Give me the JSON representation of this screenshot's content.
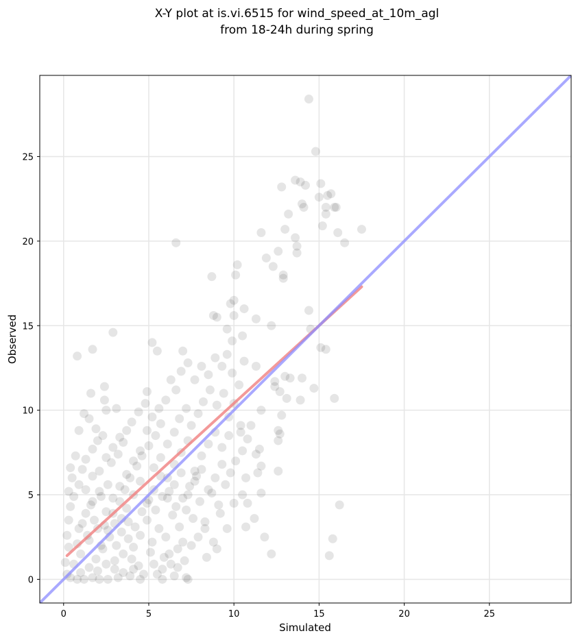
{
  "chart_data": {
    "type": "scatter",
    "title": "X-Y plot at is.vi.6515 for wind_speed_at_10m_agl",
    "subtitle": "from 18-24h during spring",
    "xlabel": "Simulated",
    "ylabel": "Observed",
    "xlim": [
      -1.4,
      29.8
    ],
    "ylim": [
      -1.4,
      29.8
    ],
    "xticks": [
      0,
      5,
      10,
      15,
      20,
      25
    ],
    "yticks": [
      0,
      5,
      10,
      15,
      20,
      25
    ],
    "grid": true,
    "point_color": "#000000",
    "point_alpha": 0.1,
    "points": [
      [
        14.4,
        28.4
      ],
      [
        14.8,
        25.3
      ],
      [
        13.6,
        23.6
      ],
      [
        13.9,
        23.5
      ],
      [
        14.2,
        23.3
      ],
      [
        15.1,
        23.4
      ],
      [
        12.8,
        23.2
      ],
      [
        14.0,
        22.2
      ],
      [
        14.1,
        22.0
      ],
      [
        15.0,
        22.6
      ],
      [
        15.5,
        22.7
      ],
      [
        15.7,
        22.8
      ],
      [
        15.4,
        22.0
      ],
      [
        15.9,
        22.0
      ],
      [
        16.0,
        22.0
      ],
      [
        13.2,
        21.6
      ],
      [
        15.4,
        21.6
      ],
      [
        15.2,
        20.9
      ],
      [
        13.0,
        20.7
      ],
      [
        16.1,
        20.5
      ],
      [
        17.5,
        20.7
      ],
      [
        11.6,
        20.5
      ],
      [
        13.6,
        20.2
      ],
      [
        13.7,
        19.7
      ],
      [
        16.5,
        19.9
      ],
      [
        6.6,
        19.9
      ],
      [
        12.6,
        19.4
      ],
      [
        13.7,
        19.3
      ],
      [
        11.9,
        19.0
      ],
      [
        10.2,
        18.6
      ],
      [
        12.3,
        18.5
      ],
      [
        10.1,
        18.0
      ],
      [
        12.9,
        18.0
      ],
      [
        12.9,
        17.8
      ],
      [
        8.7,
        17.9
      ],
      [
        10.0,
        16.5
      ],
      [
        9.8,
        16.3
      ],
      [
        10.6,
        16.0
      ],
      [
        8.8,
        15.6
      ],
      [
        9.0,
        15.5
      ],
      [
        10.0,
        15.6
      ],
      [
        11.3,
        15.4
      ],
      [
        14.4,
        15.9
      ],
      [
        14.5,
        14.8
      ],
      [
        10.5,
        14.4
      ],
      [
        9.6,
        14.8
      ],
      [
        9.9,
        14.1
      ],
      [
        2.9,
        14.6
      ],
      [
        5.2,
        14.0
      ],
      [
        5.5,
        13.5
      ],
      [
        7.0,
        13.5
      ],
      [
        1.7,
        13.6
      ],
      [
        0.8,
        13.2
      ],
      [
        15.1,
        13.7
      ],
      [
        15.4,
        13.6
      ],
      [
        12.2,
        15.0
      ],
      [
        11.3,
        12.6
      ],
      [
        12.4,
        11.7
      ],
      [
        13.0,
        12.0
      ],
      [
        13.3,
        11.9
      ],
      [
        14.0,
        11.9
      ],
      [
        12.4,
        11.4
      ],
      [
        12.7,
        11.1
      ],
      [
        14.7,
        11.3
      ],
      [
        13.1,
        10.7
      ],
      [
        13.9,
        10.6
      ],
      [
        15.9,
        10.7
      ],
      [
        11.6,
        10.0
      ],
      [
        12.8,
        9.7
      ],
      [
        12.6,
        8.8
      ],
      [
        12.7,
        8.6
      ],
      [
        12.6,
        8.2
      ],
      [
        11.0,
        9.1
      ],
      [
        10.4,
        8.7
      ],
      [
        11.5,
        7.7
      ],
      [
        11.3,
        7.4
      ],
      [
        11.6,
        6.7
      ],
      [
        11.4,
        6.3
      ],
      [
        12.6,
        6.4
      ],
      [
        11.6,
        5.1
      ],
      [
        10.7,
        6.0
      ],
      [
        10.5,
        5.0
      ],
      [
        10.8,
        4.5
      ],
      [
        10.0,
        4.5
      ],
      [
        11.2,
        3.6
      ],
      [
        10.7,
        3.1
      ],
      [
        9.6,
        3.0
      ],
      [
        11.8,
        2.5
      ],
      [
        9.2,
        3.9
      ],
      [
        8.8,
        2.2
      ],
      [
        9.0,
        1.8
      ],
      [
        8.4,
        1.3
      ],
      [
        12.2,
        1.5
      ],
      [
        15.6,
        1.4
      ],
      [
        15.8,
        2.4
      ],
      [
        16.2,
        4.4
      ],
      [
        4.9,
        11.1
      ],
      [
        1.6,
        11.0
      ],
      [
        2.4,
        11.4
      ],
      [
        2.4,
        10.6
      ],
      [
        1.2,
        9.8
      ],
      [
        1.5,
        9.5
      ],
      [
        2.5,
        10.0
      ],
      [
        3.1,
        10.1
      ],
      [
        0.9,
        8.8
      ],
      [
        1.9,
        8.9
      ],
      [
        7.0,
        2.2
      ],
      [
        7.3,
        0.0
      ],
      [
        7.2,
        0.1
      ],
      [
        6.5,
        0.2
      ],
      [
        5.8,
        0.0
      ],
      [
        5.5,
        0.3
      ],
      [
        4.5,
        0.0
      ],
      [
        3.9,
        0.2
      ],
      [
        3.2,
        0.1
      ],
      [
        2.6,
        0.0
      ],
      [
        2.1,
        0.0
      ],
      [
        1.7,
        0.1
      ],
      [
        1.2,
        0.0
      ],
      [
        0.8,
        0.0
      ],
      [
        0.4,
        0.1
      ],
      [
        0.2,
        0.3
      ],
      [
        0.1,
        1.0
      ],
      [
        0.3,
        1.9
      ],
      [
        0.2,
        2.6
      ],
      [
        0.3,
        3.5
      ],
      [
        0.4,
        4.3
      ],
      [
        0.3,
        5.2
      ],
      [
        0.5,
        6.0
      ],
      [
        0.4,
        6.6
      ],
      [
        0.7,
        7.3
      ],
      [
        0.6,
        4.9
      ],
      [
        0.9,
        5.6
      ],
      [
        1.1,
        6.5
      ],
      [
        1.3,
        7.1
      ],
      [
        1.7,
        7.7
      ],
      [
        2.0,
        8.2
      ],
      [
        2.3,
        8.5
      ],
      [
        0.8,
        2.1
      ],
      [
        1.1,
        3.3
      ],
      [
        1.5,
        2.3
      ],
      [
        1.6,
        4.4
      ],
      [
        2.0,
        3.0
      ],
      [
        2.2,
        4.9
      ],
      [
        2.6,
        5.6
      ],
      [
        2.8,
        6.9
      ],
      [
        3.2,
        7.4
      ],
      [
        3.5,
        8.1
      ],
      [
        3.7,
        8.8
      ],
      [
        4.0,
        9.3
      ],
      [
        4.4,
        9.9
      ],
      [
        4.8,
        10.4
      ],
      [
        5.2,
        9.6
      ],
      [
        5.6,
        10.1
      ],
      [
        6.0,
        10.6
      ],
      [
        6.3,
        11.8
      ],
      [
        6.6,
        11.2
      ],
      [
        6.9,
        12.3
      ],
      [
        7.3,
        12.8
      ],
      [
        7.7,
        11.8
      ],
      [
        8.1,
        12.6
      ],
      [
        8.5,
        12.1
      ],
      [
        8.9,
        13.1
      ],
      [
        9.3,
        12.6
      ],
      [
        9.6,
        13.3
      ],
      [
        9.9,
        12.2
      ],
      [
        10.3,
        11.5
      ],
      [
        10.6,
        12.9
      ],
      [
        1.9,
        1.2
      ],
      [
        2.3,
        1.8
      ],
      [
        2.7,
        2.5
      ],
      [
        3.0,
        1.1
      ],
      [
        3.4,
        2.8
      ],
      [
        3.8,
        3.4
      ],
      [
        4.1,
        1.9
      ],
      [
        4.5,
        2.6
      ],
      [
        4.9,
        3.5
      ],
      [
        5.2,
        2.2
      ],
      [
        5.6,
        3.0
      ],
      [
        6.0,
        2.5
      ],
      [
        6.4,
        3.8
      ],
      [
        6.8,
        3.1
      ],
      [
        7.2,
        4.1
      ],
      [
        7.6,
        3.6
      ],
      [
        8.0,
        4.6
      ],
      [
        8.3,
        3.4
      ],
      [
        8.7,
        5.1
      ],
      [
        9.1,
        4.4
      ],
      [
        9.5,
        5.6
      ],
      [
        9.8,
        6.3
      ],
      [
        10.1,
        7.0
      ],
      [
        10.5,
        7.6
      ],
      [
        2.9,
        3.9
      ],
      [
        3.3,
        4.6
      ],
      [
        3.6,
        5.3
      ],
      [
        3.9,
        6.0
      ],
      [
        4.3,
        6.7
      ],
      [
        4.6,
        7.3
      ],
      [
        5.0,
        7.9
      ],
      [
        5.4,
        8.5
      ],
      [
        5.7,
        9.2
      ],
      [
        6.1,
        8.0
      ],
      [
        6.5,
        8.7
      ],
      [
        6.8,
        9.5
      ],
      [
        7.2,
        10.1
      ],
      [
        7.5,
        9.1
      ],
      [
        7.9,
        9.8
      ],
      [
        8.2,
        10.5
      ],
      [
        8.6,
        11.2
      ],
      [
        9.0,
        10.3
      ],
      [
        9.4,
        11.0
      ],
      [
        9.7,
        9.6
      ],
      [
        10.0,
        10.4
      ],
      [
        10.4,
        9.1
      ],
      [
        10.8,
        8.3
      ],
      [
        1.3,
        5.3
      ],
      [
        1.7,
        6.1
      ],
      [
        2.1,
        6.4
      ],
      [
        2.5,
        7.2
      ],
      [
        2.9,
        7.8
      ],
      [
        3.3,
        8.4
      ],
      [
        3.7,
        6.2
      ],
      [
        4.1,
        7.0
      ],
      [
        4.5,
        7.6
      ],
      [
        4.9,
        8.8
      ],
      [
        5.3,
        6.6
      ],
      [
        5.7,
        7.2
      ],
      [
        6.1,
        6.0
      ],
      [
        6.5,
        6.8
      ],
      [
        6.9,
        7.5
      ],
      [
        7.3,
        8.2
      ],
      [
        7.7,
        6.4
      ],
      [
        8.1,
        7.3
      ],
      [
        8.5,
        8.0
      ],
      [
        8.9,
        8.7
      ],
      [
        9.3,
        7.8
      ],
      [
        9.7,
        8.5
      ],
      [
        0.9,
        3.0
      ],
      [
        1.3,
        3.9
      ],
      [
        1.7,
        4.6
      ],
      [
        2.1,
        5.2
      ],
      [
        2.5,
        4.0
      ],
      [
        2.9,
        4.8
      ],
      [
        3.3,
        5.5
      ],
      [
        3.7,
        4.2
      ],
      [
        4.1,
        5.0
      ],
      [
        4.5,
        5.8
      ],
      [
        4.9,
        4.5
      ],
      [
        5.3,
        5.3
      ],
      [
        5.7,
        6.1
      ],
      [
        6.1,
        4.8
      ],
      [
        6.5,
        5.6
      ],
      [
        6.9,
        6.3
      ],
      [
        7.3,
        5.0
      ],
      [
        7.7,
        5.8
      ],
      [
        8.1,
        6.5
      ],
      [
        8.5,
        5.3
      ],
      [
        8.9,
        6.0
      ],
      [
        9.3,
        6.8
      ],
      [
        2.2,
        2.0
      ],
      [
        2.6,
        2.9
      ],
      [
        3.0,
        3.3
      ],
      [
        3.4,
        3.6
      ],
      [
        3.8,
        2.4
      ],
      [
        4.2,
        3.1
      ],
      [
        4.6,
        4.0
      ],
      [
        5.0,
        4.7
      ],
      [
        5.4,
        4.1
      ],
      [
        5.8,
        4.9
      ],
      [
        6.2,
        5.2
      ],
      [
        6.6,
        4.3
      ],
      [
        7.0,
        4.8
      ],
      [
        7.4,
        5.5
      ],
      [
        7.8,
        6.1
      ],
      [
        1.0,
        1.5
      ],
      [
        1.4,
        2.6
      ],
      [
        1.8,
        3.5
      ],
      [
        2.4,
        3.2
      ],
      [
        3.1,
        2.0
      ],
      [
        3.5,
        1.5
      ],
      [
        4.0,
        1.2
      ],
      [
        4.4,
        0.8
      ],
      [
        5.1,
        1.6
      ],
      [
        5.9,
        1.3
      ],
      [
        6.3,
        0.9
      ],
      [
        6.7,
        1.8
      ],
      [
        0.6,
        0.9
      ],
      [
        1.0,
        0.4
      ],
      [
        1.5,
        0.7
      ],
      [
        2.0,
        0.5
      ],
      [
        2.5,
        0.9
      ],
      [
        3.0,
        0.6
      ],
      [
        3.5,
        0.4
      ],
      [
        4.1,
        0.6
      ],
      [
        4.7,
        0.3
      ],
      [
        5.3,
        0.9
      ],
      [
        5.8,
        0.6
      ],
      [
        6.2,
        1.5
      ],
      [
        6.7,
        0.7
      ],
      [
        7.1,
        1.1
      ],
      [
        7.5,
        2.0
      ],
      [
        7.9,
        2.5
      ],
      [
        8.3,
        3.0
      ]
    ],
    "lines": [
      {
        "name": "",
        "color": "#f08080",
        "alpha": 0.8,
        "width": 4,
        "x": [
          0.2,
          17.5
        ],
        "y": [
          1.4,
          17.3
        ]
      },
      {
        "name": "",
        "color": "#8c8cff",
        "alpha": 0.75,
        "width": 4,
        "x": [
          -1.4,
          29.8
        ],
        "y": [
          -1.4,
          29.8
        ]
      }
    ]
  }
}
